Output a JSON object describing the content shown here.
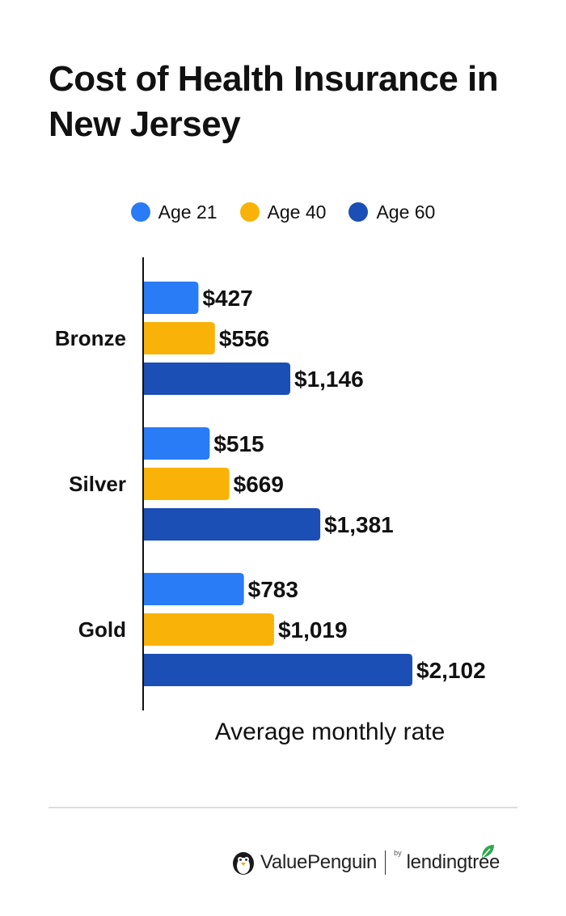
{
  "title": "Cost of Health Insurance in New Jersey",
  "chart_data": {
    "type": "bar",
    "orientation": "horizontal",
    "title": "Cost of Health Insurance in New Jersey",
    "categories": [
      "Bronze",
      "Silver",
      "Gold"
    ],
    "series": [
      {
        "name": "Age 21",
        "color": "#2a7bf6",
        "values": [
          427,
          515,
          783
        ],
        "labels": [
          "$427",
          "$515",
          "$783"
        ]
      },
      {
        "name": "Age 40",
        "color": "#f9b208",
        "values": [
          556,
          669,
          1019
        ],
        "labels": [
          "$556",
          "$669",
          "$1,019"
        ]
      },
      {
        "name": "Age 60",
        "color": "#1b4fb5",
        "values": [
          1146,
          1381,
          2102
        ],
        "labels": [
          "$1,146",
          "$1,381",
          "$2,102"
        ]
      }
    ],
    "xlabel": "Average monthly rate",
    "ylabel": "",
    "xlim": [
      0,
      2102
    ],
    "grid": false,
    "legend_position": "top"
  },
  "footer": {
    "brand_primary": "ValuePenguin",
    "brand_by": "by",
    "brand_secondary": "lendingtree",
    "logo_icon": "penguin-icon",
    "leaf_icon": "leaf-icon"
  }
}
